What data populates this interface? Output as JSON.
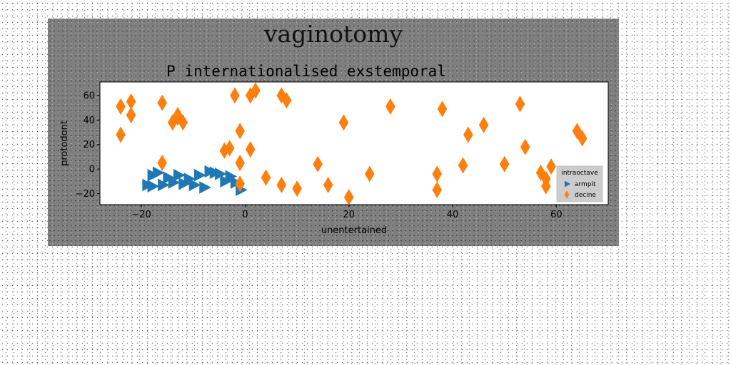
{
  "figure": {
    "suptitle": "vaginotomy"
  },
  "chart_data": {
    "type": "scatter",
    "title": "P internationalised exstemporal",
    "xlabel": "unentertained",
    "ylabel": "protodont",
    "xlim": [
      -28,
      70
    ],
    "ylim": [
      -29,
      71
    ],
    "xticks": [
      -20,
      0,
      20,
      40,
      60
    ],
    "yticks": [
      -20,
      0,
      20,
      40,
      60
    ],
    "xtick_labels": [
      "−20",
      "0",
      "20",
      "40",
      "60"
    ],
    "ytick_labels": [
      "−20",
      "0",
      "20",
      "40",
      "60"
    ],
    "grid": false,
    "legend": {
      "title": "intraoctave",
      "position": "lower-right"
    },
    "series": [
      {
        "name": "armpit",
        "marker": "triangle-right",
        "color": "#1f77b4",
        "points": [
          [
            -18,
            -5
          ],
          [
            -17,
            -3
          ],
          [
            -16,
            -13
          ],
          [
            -15,
            -7
          ],
          [
            -14,
            -11
          ],
          [
            -13,
            -5
          ],
          [
            -12,
            -12
          ],
          [
            -11,
            -8
          ],
          [
            -10,
            -13
          ],
          [
            -9,
            -5
          ],
          [
            -8,
            -15
          ],
          [
            -7,
            -2
          ],
          [
            -5,
            -4
          ],
          [
            -4,
            -10
          ],
          [
            -3,
            -6
          ],
          [
            -2,
            -11
          ],
          [
            -1,
            -17
          ],
          [
            -18,
            -14
          ],
          [
            -6,
            -3
          ],
          [
            -19,
            -13
          ]
        ]
      },
      {
        "name": "decine",
        "marker": "thin-diamond",
        "color": "#ff7f0e",
        "points": [
          [
            -24,
            51
          ],
          [
            -22,
            55
          ],
          [
            -22,
            44
          ],
          [
            -24,
            28
          ],
          [
            -16,
            54
          ],
          [
            -14,
            38
          ],
          [
            -13,
            44
          ],
          [
            -13,
            42
          ],
          [
            -12,
            38
          ],
          [
            -2,
            60
          ],
          [
            1,
            60
          ],
          [
            2,
            64
          ],
          [
            7,
            60
          ],
          [
            8,
            56
          ],
          [
            -4,
            15
          ],
          [
            -3,
            17
          ],
          [
            -1,
            31
          ],
          [
            -1,
            5
          ],
          [
            1,
            16
          ],
          [
            -16,
            5
          ],
          [
            4,
            -7
          ],
          [
            7,
            -13
          ],
          [
            10,
            -16
          ],
          [
            -1,
            -12
          ],
          [
            14,
            4
          ],
          [
            16,
            -13
          ],
          [
            19,
            38
          ],
          [
            20,
            -23
          ],
          [
            24,
            -4
          ],
          [
            28,
            51
          ],
          [
            37,
            -4
          ],
          [
            37,
            -17
          ],
          [
            38,
            49
          ],
          [
            42,
            3
          ],
          [
            43,
            28
          ],
          [
            46,
            36
          ],
          [
            50,
            4
          ],
          [
            53,
            53
          ],
          [
            54,
            18
          ],
          [
            57,
            -3
          ],
          [
            58,
            -14
          ],
          [
            59,
            2
          ],
          [
            64,
            31
          ],
          [
            65,
            25
          ],
          [
            58,
            -8
          ]
        ]
      }
    ]
  }
}
